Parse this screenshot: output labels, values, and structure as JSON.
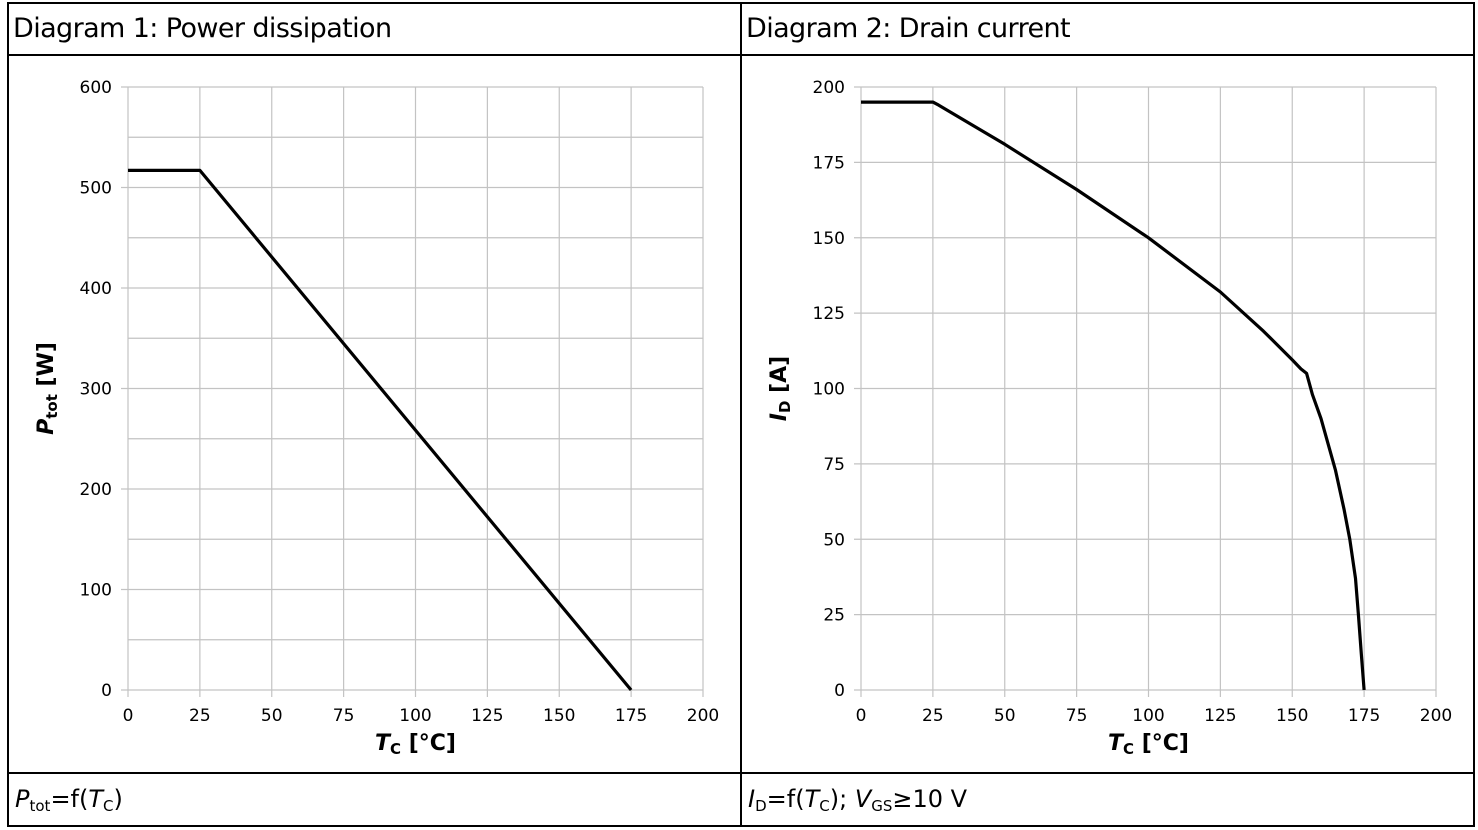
{
  "panels": [
    {
      "title": "Diagram 1: Power dissipation",
      "caption": {
        "main": "P",
        "main_sub": "tot",
        "eq": "=f(",
        "var": "T",
        "var_sub": "C",
        "close": ")",
        "extra": ""
      },
      "xlabel": {
        "main": "T",
        "sub": "C",
        "unit": " [°C]"
      },
      "ylabel": {
        "main": "P",
        "sub": "tot",
        "unit": " [W]"
      }
    },
    {
      "title": "Diagram 2: Drain current",
      "caption": {
        "main": "I",
        "main_sub": "D",
        "eq": "=f(",
        "var": "T",
        "var_sub": "C",
        "close": ");",
        "cond_var": "V",
        "cond_sub": "GS",
        "cond": "≥10 V"
      },
      "xlabel": {
        "main": "T",
        "sub": "C",
        "unit": " [°C]"
      },
      "ylabel": {
        "main": "I",
        "sub": "D",
        "unit": " [A]"
      }
    }
  ],
  "chart_data": [
    {
      "type": "line",
      "xlim": [
        0,
        200
      ],
      "ylim": [
        0,
        600
      ],
      "x_ticks": [
        0,
        25,
        50,
        75,
        100,
        125,
        150,
        175,
        200
      ],
      "y_ticks": [
        0,
        100,
        200,
        300,
        400,
        500,
        600
      ],
      "y_minor_grid": 50,
      "grid": true,
      "series": [
        {
          "x": [
            0,
            25,
            175
          ],
          "y": [
            517,
            517,
            0
          ]
        }
      ]
    },
    {
      "type": "line",
      "xlim": [
        0,
        200
      ],
      "ylim": [
        0,
        200
      ],
      "x_ticks": [
        0,
        25,
        50,
        75,
        100,
        125,
        150,
        175,
        200
      ],
      "y_ticks": [
        0,
        25,
        50,
        75,
        100,
        125,
        150,
        175,
        200
      ],
      "grid": true,
      "series": [
        {
          "x": [
            0,
            25,
            27,
            50,
            75,
            100,
            125,
            140,
            150,
            153,
            155,
            157,
            160,
            165,
            168,
            170,
            172,
            173,
            174,
            175
          ],
          "y": [
            195,
            195,
            194,
            181,
            166,
            150,
            132,
            119,
            109.5,
            106.5,
            105,
            98,
            90,
            73,
            60,
            50,
            37,
            25,
            12,
            0
          ]
        }
      ]
    }
  ]
}
